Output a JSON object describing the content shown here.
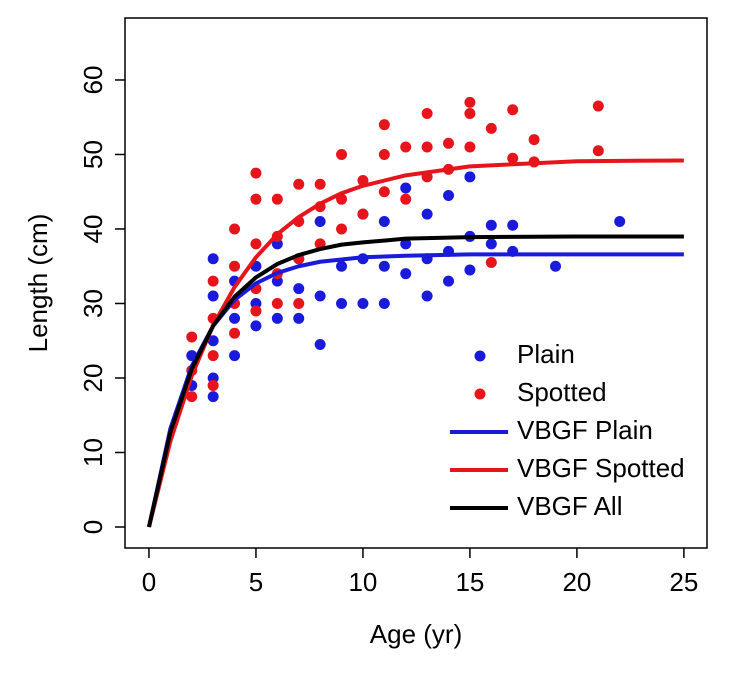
{
  "chart_data": {
    "type": "scatter",
    "xlabel": "Age (yr)",
    "ylabel": "Length (cm)",
    "xlim": [
      -1.12,
      26.08
    ],
    "ylim": [
      -2.82,
      68.32
    ],
    "xticks": [
      0,
      5,
      10,
      15,
      20,
      25
    ],
    "yticks": [
      0,
      10,
      20,
      30,
      40,
      50,
      60
    ],
    "legend": "bottomright",
    "series": [
      {
        "name": "Plain",
        "color": "#1a1adb",
        "mode": "points",
        "x": [
          2,
          2,
          3,
          3,
          3,
          3,
          3,
          4,
          4,
          4,
          5,
          5,
          5,
          6,
          6,
          6,
          7,
          7,
          7,
          8,
          8,
          8,
          9,
          9,
          10,
          10,
          10,
          11,
          11,
          11,
          12,
          12,
          12,
          13,
          13,
          13,
          14,
          14,
          14,
          15,
          15,
          15,
          16,
          16,
          17,
          17,
          19,
          22
        ],
        "values": [
          23,
          19,
          36,
          31,
          25,
          20,
          17.5,
          23,
          28,
          33,
          27,
          30,
          35,
          28,
          33,
          38,
          28,
          32,
          36,
          24.5,
          31,
          41,
          30,
          35,
          30,
          36,
          42,
          30,
          35,
          41,
          34,
          38,
          45.5,
          31,
          36,
          42,
          33,
          37,
          44.5,
          34.5,
          39,
          47,
          38,
          40.5,
          37,
          40.5,
          35,
          41
        ]
      },
      {
        "name": "Spotted",
        "color": "#e8141c",
        "mode": "points",
        "x": [
          2,
          2,
          2,
          3,
          3,
          3,
          3,
          4,
          4,
          4,
          4,
          5,
          5,
          5,
          5,
          5,
          6,
          6,
          6,
          6,
          7,
          7,
          7,
          7,
          8,
          8,
          8,
          9,
          9,
          9,
          10,
          10,
          11,
          11,
          11,
          12,
          12,
          13,
          13,
          13,
          14,
          14,
          15,
          15,
          15,
          16,
          16,
          17,
          17,
          18,
          18,
          21,
          21
        ],
        "values": [
          25.5,
          21,
          17.5,
          33,
          28,
          23,
          19,
          40,
          35,
          30,
          26,
          47.5,
          44,
          38,
          32,
          29,
          44,
          39,
          34,
          30,
          46,
          41,
          36,
          30,
          46,
          43,
          38,
          50,
          44,
          40,
          46.5,
          42,
          54,
          50,
          45,
          51,
          44,
          55.5,
          51,
          47,
          51.5,
          48,
          57,
          55.5,
          51,
          53.5,
          35.5,
          56,
          49.5,
          52,
          49,
          56.5,
          50.5
        ]
      },
      {
        "name": "VBGF Plain",
        "color": "#1a1adb",
        "mode": "line",
        "x": [
          0,
          1,
          2,
          3,
          4,
          5,
          6,
          7,
          8,
          9,
          10,
          12,
          15,
          20,
          25
        ],
        "values": [
          0,
          13.2,
          21.6,
          27.0,
          30.5,
          32.7,
          34.1,
          35.0,
          35.6,
          35.9,
          36.2,
          36.4,
          36.6,
          36.6,
          36.6
        ]
      },
      {
        "name": "VBGF Spotted",
        "color": "#e8141c",
        "mode": "line",
        "x": [
          0,
          1,
          2,
          3,
          4,
          5,
          6,
          7,
          8,
          9,
          10,
          12,
          15,
          20,
          25
        ],
        "values": [
          0,
          11.5,
          20.3,
          27.1,
          32.2,
          36.2,
          39.3,
          41.6,
          43.4,
          44.8,
          45.8,
          47.2,
          48.4,
          49.1,
          49.2
        ]
      },
      {
        "name": "VBGF All",
        "color": "#000000",
        "mode": "line",
        "x": [
          0,
          1,
          2,
          3,
          4,
          5,
          6,
          7,
          8,
          9,
          10,
          12,
          15,
          20,
          25
        ],
        "values": [
          0,
          12.7,
          21.2,
          27.0,
          30.9,
          33.5,
          35.3,
          36.5,
          37.3,
          37.9,
          38.2,
          38.7,
          38.9,
          39.0,
          39.0
        ]
      }
    ]
  }
}
